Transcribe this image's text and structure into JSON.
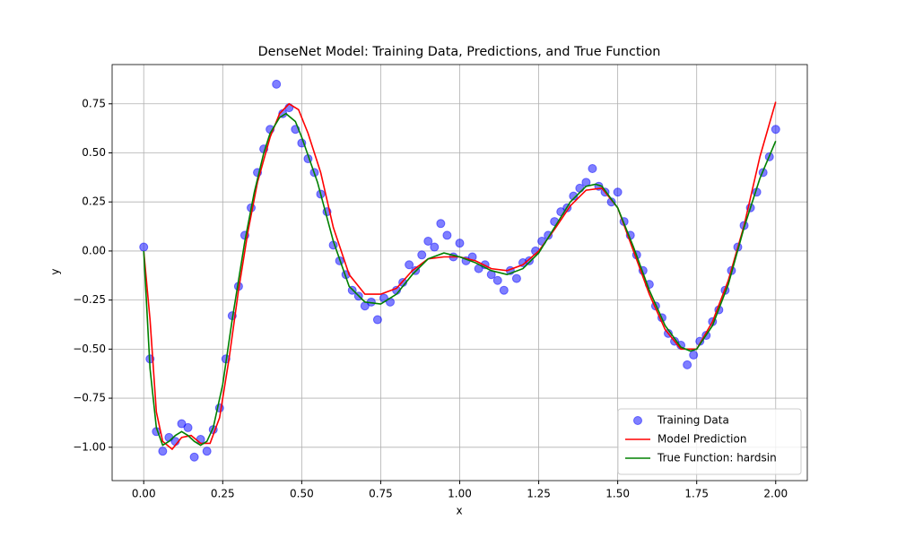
{
  "chart_data": {
    "type": "scatter",
    "title": "DenseNet Model: Training Data, Predictions, and True Function",
    "xlabel": "x",
    "ylabel": "y",
    "xlim": [
      -0.1,
      2.1
    ],
    "ylim": [
      -1.17,
      0.95
    ],
    "xticks": [
      {
        "value": 0,
        "label": "0.00"
      },
      {
        "value": 0.25,
        "label": "0.25"
      },
      {
        "value": 0.5,
        "label": "0.50"
      },
      {
        "value": 0.75,
        "label": "0.75"
      },
      {
        "value": 1,
        "label": "1.00"
      },
      {
        "value": 1.25,
        "label": "1.25"
      },
      {
        "value": 1.5,
        "label": "1.50"
      },
      {
        "value": 1.75,
        "label": "1.75"
      },
      {
        "value": 2,
        "label": "2.00"
      }
    ],
    "yticks": [
      {
        "value": -1,
        "label": "−1.00"
      },
      {
        "value": -0.75,
        "label": "−0.75"
      },
      {
        "value": -0.5,
        "label": "−0.50"
      },
      {
        "value": -0.25,
        "label": "−0.25"
      },
      {
        "value": 0,
        "label": "0.00"
      },
      {
        "value": 0.25,
        "label": "0.25"
      },
      {
        "value": 0.5,
        "label": "0.50"
      },
      {
        "value": 0.75,
        "label": "0.75"
      }
    ],
    "grid": true,
    "legend": "lower right",
    "series": [
      {
        "name": "Training Data",
        "type": "scatter",
        "color": "#0000ff",
        "alpha": 0.5,
        "x": [
          0,
          0.02,
          0.04,
          0.06,
          0.08,
          0.1,
          0.12,
          0.14,
          0.16,
          0.18,
          0.2,
          0.22,
          0.24,
          0.26,
          0.28,
          0.3,
          0.32,
          0.34,
          0.36,
          0.38,
          0.4,
          0.42,
          0.44,
          0.46,
          0.48,
          0.5,
          0.52,
          0.54,
          0.56,
          0.58,
          0.6,
          0.62,
          0.64,
          0.66,
          0.68,
          0.7,
          0.72,
          0.74,
          0.76,
          0.78,
          0.8,
          0.82,
          0.84,
          0.86,
          0.88,
          0.9,
          0.92,
          0.94,
          0.96,
          0.98,
          1,
          1.02,
          1.04,
          1.06,
          1.08,
          1.1,
          1.12,
          1.14,
          1.16,
          1.18,
          1.2,
          1.22,
          1.24,
          1.26,
          1.28,
          1.3,
          1.32,
          1.34,
          1.36,
          1.38,
          1.4,
          1.42,
          1.44,
          1.46,
          1.48,
          1.5,
          1.52,
          1.54,
          1.56,
          1.58,
          1.6,
          1.62,
          1.64,
          1.66,
          1.68,
          1.7,
          1.72,
          1.74,
          1.76,
          1.78,
          1.8,
          1.82,
          1.84,
          1.86,
          1.88,
          1.9,
          1.92,
          1.94,
          1.96,
          1.98,
          2
        ],
        "values": [
          0.02,
          -0.55,
          -0.92,
          -1.02,
          -0.95,
          -0.97,
          -0.88,
          -0.9,
          -1.05,
          -0.96,
          -1.02,
          -0.91,
          -0.8,
          -0.55,
          -0.33,
          -0.18,
          0.08,
          0.22,
          0.4,
          0.52,
          0.62,
          0.85,
          0.7,
          0.73,
          0.62,
          0.55,
          0.47,
          0.4,
          0.29,
          0.2,
          0.03,
          -0.05,
          -0.12,
          -0.2,
          -0.23,
          -0.28,
          -0.26,
          -0.35,
          -0.24,
          -0.26,
          -0.2,
          -0.16,
          -0.07,
          -0.1,
          -0.02,
          0.05,
          0.02,
          0.14,
          0.08,
          -0.03,
          0.04,
          -0.05,
          -0.03,
          -0.09,
          -0.07,
          -0.12,
          -0.15,
          -0.2,
          -0.1,
          -0.14,
          -0.06,
          -0.05,
          0,
          0.05,
          0.08,
          0.15,
          0.2,
          0.22,
          0.28,
          0.32,
          0.35,
          0.42,
          0.33,
          0.3,
          0.25,
          0.3,
          0.15,
          0.08,
          -0.02,
          -0.1,
          -0.17,
          -0.28,
          -0.34,
          -0.42,
          -0.46,
          -0.48,
          -0.58,
          -0.53,
          -0.46,
          -0.43,
          -0.36,
          -0.3,
          -0.2,
          -0.1,
          0.02,
          0.13,
          0.22,
          0.3,
          0.4,
          0.48,
          0.62
        ]
      },
      {
        "name": "Model Prediction",
        "type": "line",
        "color": "#ff0000",
        "x": [
          0,
          0.02,
          0.04,
          0.06,
          0.09,
          0.12,
          0.15,
          0.18,
          0.21,
          0.24,
          0.27,
          0.3,
          0.33,
          0.36,
          0.4,
          0.43,
          0.46,
          0.49,
          0.52,
          0.56,
          0.6,
          0.65,
          0.7,
          0.75,
          0.8,
          0.85,
          0.9,
          0.95,
          1,
          1.05,
          1.1,
          1.15,
          1.2,
          1.25,
          1.3,
          1.35,
          1.4,
          1.45,
          1.5,
          1.55,
          1.6,
          1.65,
          1.7,
          1.75,
          1.8,
          1.85,
          1.9,
          1.95,
          2
        ],
        "values": [
          0,
          -0.35,
          -0.82,
          -0.97,
          -1.01,
          -0.95,
          -0.94,
          -0.98,
          -0.98,
          -0.85,
          -0.55,
          -0.2,
          0.1,
          0.35,
          0.58,
          0.7,
          0.75,
          0.72,
          0.6,
          0.4,
          0.12,
          -0.12,
          -0.22,
          -0.22,
          -0.19,
          -0.1,
          -0.04,
          -0.03,
          -0.03,
          -0.05,
          -0.09,
          -0.1,
          -0.07,
          0,
          0.11,
          0.23,
          0.31,
          0.32,
          0.22,
          0,
          -0.22,
          -0.4,
          -0.5,
          -0.5,
          -0.36,
          -0.15,
          0.13,
          0.48,
          0.76
        ]
      },
      {
        "name": "True Function: hardsin",
        "type": "line",
        "color": "#008000",
        "x": [
          0,
          0.02,
          0.04,
          0.06,
          0.08,
          0.1,
          0.12,
          0.14,
          0.16,
          0.18,
          0.2,
          0.22,
          0.25,
          0.28,
          0.3,
          0.32,
          0.35,
          0.38,
          0.4,
          0.43,
          0.45,
          0.48,
          0.5,
          0.55,
          0.6,
          0.65,
          0.7,
          0.75,
          0.8,
          0.85,
          0.9,
          0.95,
          1,
          1.05,
          1.1,
          1.15,
          1.2,
          1.25,
          1.3,
          1.35,
          1.4,
          1.43,
          1.45,
          1.5,
          1.55,
          1.6,
          1.65,
          1.7,
          1.73,
          1.75,
          1.8,
          1.85,
          1.9,
          1.95,
          2
        ],
        "values": [
          0,
          -0.6,
          -0.9,
          -0.99,
          -0.97,
          -0.94,
          -0.92,
          -0.94,
          -0.97,
          -0.99,
          -0.97,
          -0.9,
          -0.68,
          -0.35,
          -0.15,
          0.05,
          0.3,
          0.5,
          0.6,
          0.68,
          0.7,
          0.66,
          0.58,
          0.35,
          0.05,
          -0.18,
          -0.26,
          -0.27,
          -0.22,
          -0.12,
          -0.04,
          -0.01,
          -0.03,
          -0.06,
          -0.1,
          -0.12,
          -0.09,
          -0.01,
          0.12,
          0.25,
          0.33,
          0.34,
          0.33,
          0.22,
          0.02,
          -0.2,
          -0.38,
          -0.49,
          -0.51,
          -0.5,
          -0.38,
          -0.17,
          0.12,
          0.37,
          0.56
        ]
      }
    ]
  }
}
